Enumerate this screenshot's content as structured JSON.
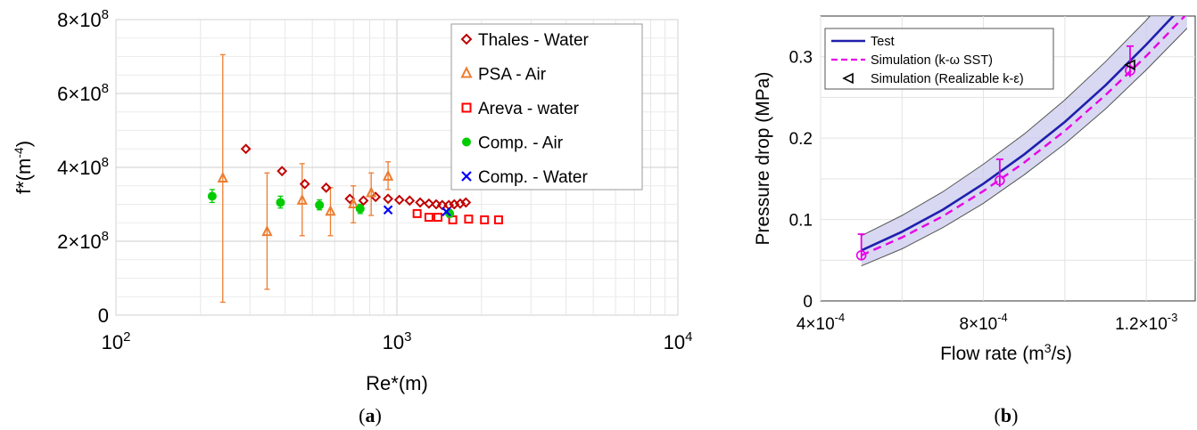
{
  "charts": [
    {
      "panel_label": "(a)",
      "chart_data": {
        "type": "scatter",
        "title": "",
        "xlabel": "Re*(m)",
        "ylabel": "f*(m-4)",
        "x_scale": "log",
        "xlim": [
          100,
          10000
        ],
        "ylim": [
          0,
          800000000
        ],
        "x_ticks": [
          "10^2",
          "10^3",
          "10^4"
        ],
        "y_ticks": [
          "0",
          "2×10^8",
          "4×10^8",
          "6×10^8",
          "8×10^8"
        ],
        "grid": true,
        "legend_position": "top-right",
        "series": [
          {
            "name": "Thales - Water",
            "marker": "diamond",
            "color": "#c00000",
            "x": [
              290,
              390,
              470,
              560,
              680,
              760,
              840,
              930,
              1020,
              1110,
              1210,
              1300,
              1380,
              1450,
              1530,
              1600,
              1680,
              1760
            ],
            "y": [
              450000000,
              390000000,
              355000000,
              345000000,
              315000000,
              310000000,
              320000000,
              315000000,
              312000000,
              310000000,
              305000000,
              302000000,
              300000000,
              298000000,
              298000000,
              300000000,
              302000000,
              305000000
            ]
          },
          {
            "name": "PSA - Air",
            "marker": "triangle",
            "color": "#ed7d31",
            "x": [
              240,
              345,
              460,
              580,
              700,
              810,
              930
            ],
            "y": [
              370000000,
              225000000,
              310000000,
              280000000,
              300000000,
              330000000,
              375000000
            ],
            "err_low": [
              35000000,
              70000000,
              215000000,
              215000000,
              250000000,
              270000000,
              340000000
            ],
            "err_high": [
              705000000,
              385000000,
              410000000,
              345000000,
              350000000,
              385000000,
              415000000
            ]
          },
          {
            "name": "Areva - water",
            "marker": "square",
            "color": "#ff0000",
            "x": [
              1180,
              1300,
              1400,
              1580,
              1800,
              2050,
              2300
            ],
            "y": [
              275000000,
              265000000,
              265000000,
              258000000,
              260000000,
              258000000,
              258000000
            ],
            "err_low": [],
            "err_high": []
          },
          {
            "name": "Comp. - Air",
            "marker": "circle",
            "color": "#00cc00",
            "x": [
              220,
              385,
              530,
              740,
              1540
            ],
            "y": [
              322000000,
              305000000,
              298000000,
              288000000,
              275000000
            ],
            "err_low": [
              305000000,
              290000000,
              285000000,
              275000000,
              265000000
            ],
            "err_high": [
              340000000,
              322000000,
              312000000,
              300000000,
              285000000
            ]
          },
          {
            "name": "Comp. - Water",
            "marker": "x",
            "color": "#0000ff",
            "x": [
              930,
              1500
            ],
            "y": [
              285000000,
              280000000
            ]
          }
        ]
      }
    },
    {
      "panel_label": "(b)",
      "chart_data": {
        "type": "line",
        "title": "",
        "xlabel": "Flow rate (m3/s)",
        "ylabel": "Pressure drop (MPa)",
        "xlim": [
          0.0004,
          0.00132
        ],
        "ylim": [
          0,
          0.35
        ],
        "x_ticks": [
          "4×10^-4",
          "8×10^-4",
          "1.2×10^-3"
        ],
        "y_ticks": [
          "0",
          "0.1",
          "0.2",
          "0.3"
        ],
        "grid": true,
        "legend_position": "top-left",
        "series": [
          {
            "name": "Test",
            "style": "solid",
            "color": "#1f1fae",
            "x": [
              0.0005,
              0.0006,
              0.0007,
              0.0008,
              0.0009,
              0.001,
              0.0011,
              0.0012,
              0.0013
            ],
            "y": [
              0.062,
              0.085,
              0.112,
              0.144,
              0.18,
              0.22,
              0.265,
              0.315,
              0.368
            ],
            "band_low": [
              0.043,
              0.064,
              0.09,
              0.12,
              0.155,
              0.193,
              0.236,
              0.284,
              0.335
            ],
            "band_high": [
              0.08,
              0.105,
              0.134,
              0.168,
              0.205,
              0.247,
              0.294,
              0.345,
              0.4
            ]
          },
          {
            "name": "Simulation (k-ω SST)",
            "style": "dashed",
            "color": "#e600e6",
            "x": [
              0.0005,
              0.0006,
              0.0007,
              0.0008,
              0.0009,
              0.001,
              0.0011,
              0.0012,
              0.0013
            ],
            "y": [
              0.056,
              0.078,
              0.104,
              0.135,
              0.17,
              0.209,
              0.253,
              0.301,
              0.353
            ],
            "markers_x": [
              0.0005,
              0.00084,
              0.00116
            ],
            "markers_y": [
              0.056,
              0.148,
              0.283
            ],
            "err_low": [
              0.05,
              0.14,
              0.275
            ],
            "err_high": [
              0.082,
              0.174,
              0.313
            ]
          },
          {
            "name": "Simulation (Realizable k-ε)",
            "style": "marker",
            "marker": "triangle-left",
            "color": "#000000",
            "x": [
              0.00116
            ],
            "y": [
              0.29
            ]
          }
        ]
      }
    }
  ]
}
